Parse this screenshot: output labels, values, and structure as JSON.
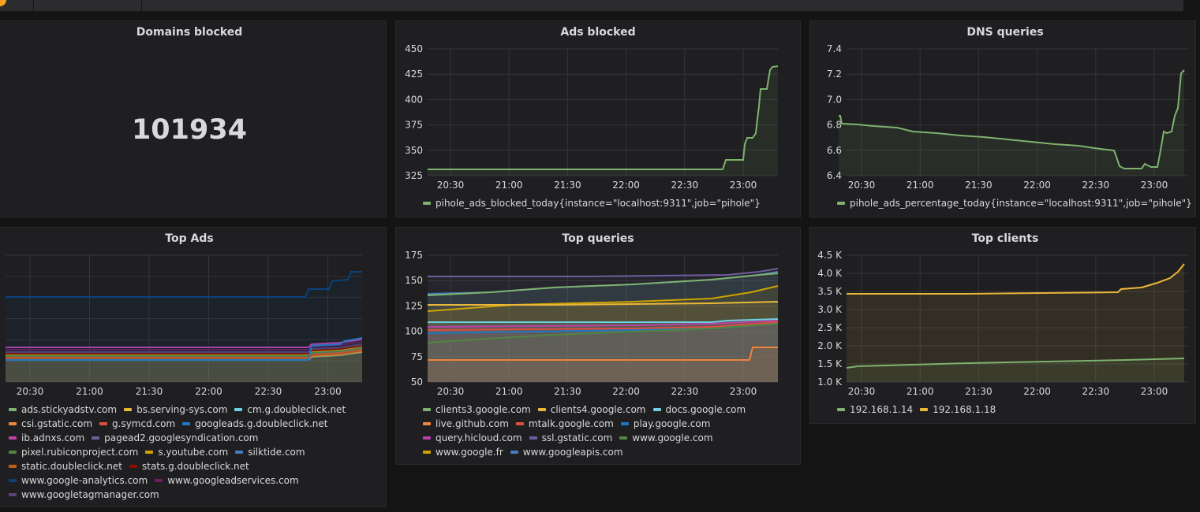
{
  "dashboard": {
    "x_ticks": [
      "20:30",
      "21:00",
      "21:30",
      "22:00",
      "22:30",
      "23:00"
    ]
  },
  "panels": {
    "domains_blocked": {
      "title": "Domains blocked",
      "value": "101934"
    },
    "ads_blocked": {
      "title": "Ads blocked",
      "y_ticks": [
        "450",
        "425",
        "400",
        "375",
        "350",
        "325"
      ],
      "legend": [
        {
          "label": "pihole_ads_blocked_today{instance=\"localhost:9311\",job=\"pihole\"}",
          "color": "#7eb26d"
        }
      ]
    },
    "dns_queries": {
      "title": "DNS queries",
      "y_ticks": [
        "7.4",
        "7.2",
        "7.0",
        "6.8",
        "6.6",
        "6.4"
      ],
      "legend": [
        {
          "label": "pihole_ads_percentage_today{instance=\"localhost:9311\",job=\"pihole\"}",
          "color": "#7eb26d"
        }
      ]
    },
    "top_ads": {
      "title": "Top Ads",
      "legend": [
        {
          "label": "ads.stickyadstv.com",
          "color": "#7eb26d"
        },
        {
          "label": "bs.serving-sys.com",
          "color": "#eab839"
        },
        {
          "label": "cm.g.doubleclick.net",
          "color": "#6ed0e0"
        },
        {
          "label": "csi.gstatic.com",
          "color": "#ef843c"
        },
        {
          "label": "g.symcd.com",
          "color": "#e24d42"
        },
        {
          "label": "googleads.g.doubleclick.net",
          "color": "#1f78c1"
        },
        {
          "label": "ib.adnxs.com",
          "color": "#ba43a9"
        },
        {
          "label": "pagead2.googlesyndication.com",
          "color": "#705da0"
        },
        {
          "label": "pixel.rubiconproject.com",
          "color": "#508642"
        },
        {
          "label": "s.youtube.com",
          "color": "#cca300"
        },
        {
          "label": "silktide.com",
          "color": "#447ebc"
        },
        {
          "label": "static.doubleclick.net",
          "color": "#c15c17"
        },
        {
          "label": "stats.g.doubleclick.net",
          "color": "#890f02"
        },
        {
          "label": "www.google-analytics.com",
          "color": "#0a437c"
        },
        {
          "label": "www.googleadservices.com",
          "color": "#6d1f62"
        },
        {
          "label": "www.googletagmanager.com",
          "color": "#584477"
        }
      ]
    },
    "top_queries": {
      "title": "Top queries",
      "y_ticks": [
        "175",
        "150",
        "125",
        "100",
        "75",
        "50"
      ],
      "legend": [
        {
          "label": "clients3.google.com",
          "color": "#7eb26d"
        },
        {
          "label": "clients4.google.com",
          "color": "#eab839"
        },
        {
          "label": "docs.google.com",
          "color": "#6ed0e0"
        },
        {
          "label": "live.github.com",
          "color": "#ef843c"
        },
        {
          "label": "mtalk.google.com",
          "color": "#e24d42"
        },
        {
          "label": "play.google.com",
          "color": "#1f78c1"
        },
        {
          "label": "query.hicloud.com",
          "color": "#ba43a9"
        },
        {
          "label": "ssl.gstatic.com",
          "color": "#705da0"
        },
        {
          "label": "www.google.com",
          "color": "#508642"
        },
        {
          "label": "www.google.fr",
          "color": "#cca300"
        },
        {
          "label": "www.googleapis.com",
          "color": "#447ebc"
        }
      ]
    },
    "top_clients": {
      "title": "Top clients",
      "y_ticks": [
        "4.5 K",
        "4.0 K",
        "3.5 K",
        "3.0 K",
        "2.5 K",
        "2.0 K",
        "1.5 K",
        "1.0 K"
      ],
      "legend": [
        {
          "label": "192.168.1.14",
          "color": "#7eb26d"
        },
        {
          "label": "192.168.1.18",
          "color": "#eab839"
        }
      ]
    }
  }
}
